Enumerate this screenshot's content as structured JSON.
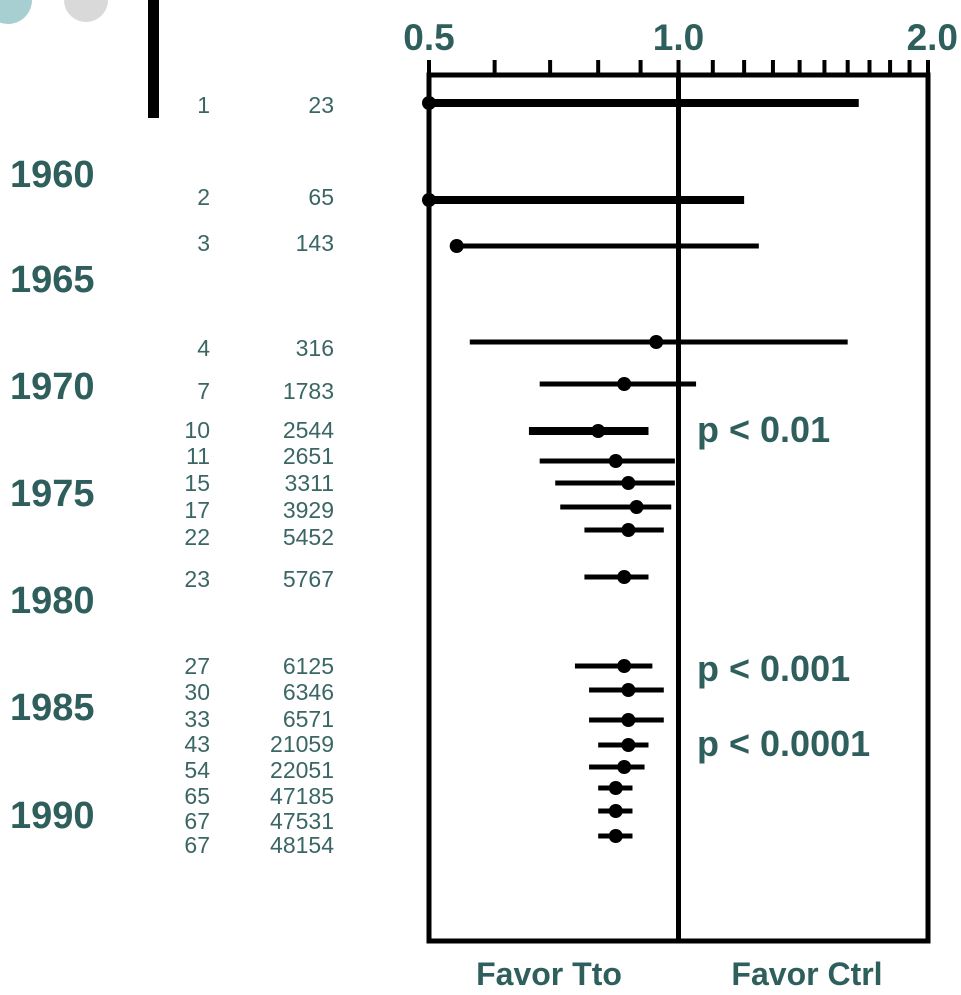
{
  "chart_data": {
    "type": "forest",
    "x_scale": "log",
    "xlim": [
      0.5,
      2.0
    ],
    "ref_line": 1.0,
    "x_tick_labels": [
      {
        "value": 0.5,
        "label": "0.5"
      },
      {
        "value": 1.0,
        "label": "1.0"
      },
      {
        "value": 2.0,
        "label": "2.0"
      }
    ],
    "x_minor_ticks": [
      0.6,
      0.7,
      0.8,
      0.9,
      1.1,
      1.2,
      1.3,
      1.4,
      1.5,
      1.6,
      1.7,
      1.8,
      1.9
    ],
    "columns": [
      "trials",
      "patients"
    ],
    "rows": [
      {
        "trials": "1",
        "patients": "23",
        "estimate": 0.5,
        "ci": [
          0.5,
          1.65
        ]
      },
      {
        "trials": "2",
        "patients": "65",
        "estimate": 0.5,
        "ci": [
          0.5,
          1.2
        ]
      },
      {
        "trials": "3",
        "patients": "143",
        "estimate": 0.54,
        "ci": [
          0.54,
          1.25
        ]
      },
      {
        "trials": "4",
        "patients": "316",
        "estimate": 0.94,
        "ci": [
          0.56,
          1.6
        ]
      },
      {
        "trials": "7",
        "patients": "1783",
        "estimate": 0.86,
        "ci": [
          0.68,
          1.05
        ]
      },
      {
        "trials": "10",
        "patients": "2544",
        "estimate": 0.8,
        "ci": [
          0.66,
          0.92
        ]
      },
      {
        "trials": "11",
        "patients": "2651",
        "estimate": 0.84,
        "ci": [
          0.68,
          0.99
        ]
      },
      {
        "trials": "15",
        "patients": "3311",
        "estimate": 0.87,
        "ci": [
          0.71,
          0.99
        ]
      },
      {
        "trials": "17",
        "patients": "3929",
        "estimate": 0.89,
        "ci": [
          0.72,
          0.98
        ]
      },
      {
        "trials": "22",
        "patients": "5452",
        "estimate": 0.87,
        "ci": [
          0.77,
          0.96
        ]
      },
      {
        "trials": "23",
        "patients": "5767",
        "estimate": 0.86,
        "ci": [
          0.77,
          0.92
        ]
      },
      {
        "trials": "27",
        "patients": "6125",
        "estimate": 0.86,
        "ci": [
          0.75,
          0.93
        ]
      },
      {
        "trials": "30",
        "patients": "6346",
        "estimate": 0.87,
        "ci": [
          0.78,
          0.96
        ]
      },
      {
        "trials": "33",
        "patients": "6571",
        "estimate": 0.87,
        "ci": [
          0.78,
          0.96
        ]
      },
      {
        "trials": "43",
        "patients": "21059",
        "estimate": 0.87,
        "ci": [
          0.8,
          0.92
        ]
      },
      {
        "trials": "54",
        "patients": "22051",
        "estimate": 0.86,
        "ci": [
          0.78,
          0.91
        ]
      },
      {
        "trials": "65",
        "patients": "47185",
        "estimate": 0.84,
        "ci": [
          0.8,
          0.88
        ]
      },
      {
        "trials": "67",
        "patients": "47531",
        "estimate": 0.84,
        "ci": [
          0.8,
          0.88
        ]
      },
      {
        "trials": "67",
        "patients": "48154",
        "estimate": 0.84,
        "ci": [
          0.8,
          0.88
        ]
      }
    ],
    "year_labels": [
      "1960",
      "1965",
      "1970",
      "1975",
      "1980",
      "1985",
      "1990"
    ],
    "annotations": [
      "p < 0.01",
      "p < 0.001",
      "p < 0.0001"
    ],
    "footer_left": "Favor Tto",
    "footer_right": "Favor Ctrl",
    "colors": {
      "text": "#2f5f5c",
      "line": "#000000"
    }
  }
}
